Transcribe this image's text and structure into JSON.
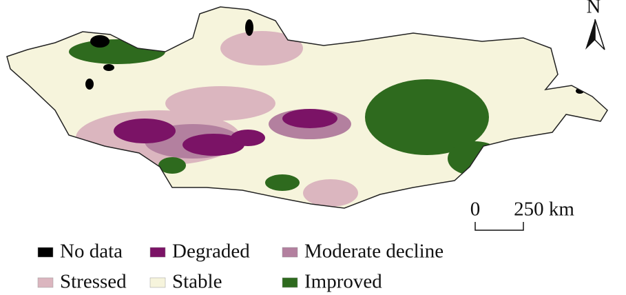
{
  "map": {
    "north_label": "N",
    "scale_bar": {
      "labels": [
        "0",
        "250 km"
      ]
    },
    "legend": [
      {
        "label": "No data",
        "color": "#000000"
      },
      {
        "label": "Degraded",
        "color": "#7b1366"
      },
      {
        "label": "Moderate decline",
        "color": "#b3809f"
      },
      {
        "label": "Stressed",
        "color": "#dbb6bf"
      },
      {
        "label": "Stable",
        "color": "#f6f4dc"
      },
      {
        "label": "Improved",
        "color": "#2e6a1e"
      }
    ]
  }
}
